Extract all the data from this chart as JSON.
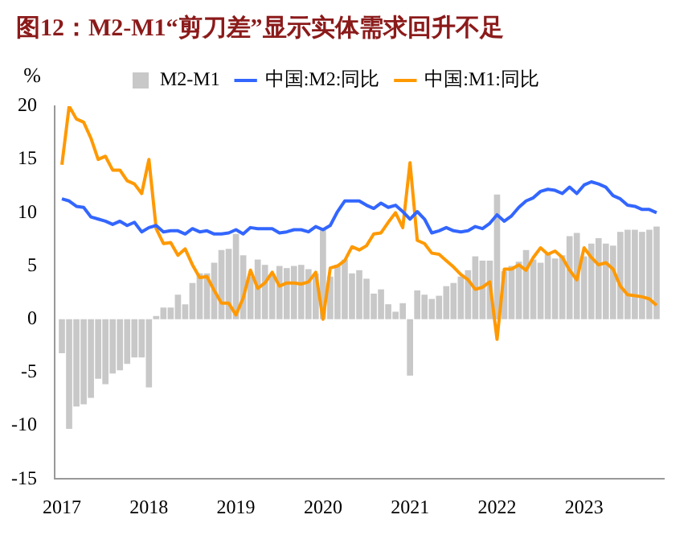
{
  "chart_data": {
    "type": "bar",
    "title": "图12：M2-M1“剪刀差”显示实体需求回升不足",
    "ylabel": "%",
    "x": [
      "2017-01",
      "2017-02",
      "2017-03",
      "2017-04",
      "2017-05",
      "2017-06",
      "2017-07",
      "2017-08",
      "2017-09",
      "2017-10",
      "2017-11",
      "2017-12",
      "2018-01",
      "2018-02",
      "2018-03",
      "2018-04",
      "2018-05",
      "2018-06",
      "2018-07",
      "2018-08",
      "2018-09",
      "2018-10",
      "2018-11",
      "2018-12",
      "2019-01",
      "2019-02",
      "2019-03",
      "2019-04",
      "2019-05",
      "2019-06",
      "2019-07",
      "2019-08",
      "2019-09",
      "2019-10",
      "2019-11",
      "2019-12",
      "2020-01",
      "2020-02",
      "2020-03",
      "2020-04",
      "2020-05",
      "2020-06",
      "2020-07",
      "2020-08",
      "2020-09",
      "2020-10",
      "2020-11",
      "2020-12",
      "2021-01",
      "2021-02",
      "2021-03",
      "2021-04",
      "2021-05",
      "2021-06",
      "2021-07",
      "2021-08",
      "2021-09",
      "2021-10",
      "2021-11",
      "2021-12",
      "2022-01",
      "2022-02",
      "2022-03",
      "2022-04",
      "2022-05",
      "2022-06",
      "2022-07",
      "2022-08",
      "2022-09",
      "2022-10",
      "2022-11",
      "2022-12",
      "2023-01",
      "2023-02",
      "2023-03",
      "2023-04",
      "2023-05",
      "2023-06",
      "2023-07",
      "2023-08",
      "2023-09",
      "2023-10",
      "2023-11"
    ],
    "series": [
      {
        "name": "M2-M1",
        "color": "#c8c8c8",
        "values": [
          -3.2,
          -10.3,
          -8.2,
          -8.0,
          -7.4,
          -5.6,
          -6.1,
          -5.1,
          -4.8,
          -4.2,
          -3.6,
          -3.6,
          -6.4,
          0.3,
          1.1,
          1.1,
          2.3,
          1.4,
          3.4,
          4.3,
          4.3,
          5.3,
          6.5,
          6.6,
          8.0,
          6.0,
          4.0,
          5.6,
          5.1,
          4.1,
          5.0,
          4.8,
          5.0,
          5.1,
          4.7,
          4.3,
          8.4,
          4.0,
          5.1,
          5.6,
          4.3,
          4.6,
          3.8,
          2.4,
          2.8,
          1.4,
          0.7,
          1.5,
          -5.3,
          2.7,
          2.3,
          1.9,
          2.2,
          3.1,
          3.4,
          4.0,
          4.6,
          5.9,
          5.5,
          5.5,
          11.7,
          4.5,
          5.0,
          5.4,
          6.5,
          5.6,
          5.3,
          6.1,
          5.7,
          6.0,
          7.8,
          8.1,
          5.9,
          7.1,
          7.6,
          7.1,
          6.9,
          8.2,
          8.4,
          8.4,
          8.2,
          8.4,
          8.7
        ]
      },
      {
        "name": "中国:M2:同比",
        "type": "line",
        "color": "#3366ff",
        "values": [
          11.3,
          11.1,
          10.6,
          10.5,
          9.6,
          9.4,
          9.2,
          8.9,
          9.2,
          8.8,
          9.1,
          8.2,
          8.6,
          8.8,
          8.2,
          8.3,
          8.3,
          8.0,
          8.5,
          8.2,
          8.3,
          8.0,
          8.0,
          8.1,
          8.4,
          8.0,
          8.6,
          8.5,
          8.5,
          8.5,
          8.1,
          8.2,
          8.4,
          8.4,
          8.2,
          8.7,
          8.4,
          8.8,
          10.1,
          11.1,
          11.1,
          11.1,
          10.7,
          10.4,
          10.9,
          10.5,
          10.7,
          10.1,
          9.4,
          10.1,
          9.4,
          8.1,
          8.3,
          8.6,
          8.3,
          8.2,
          8.3,
          8.7,
          8.5,
          9.0,
          9.8,
          9.2,
          9.7,
          10.5,
          11.1,
          11.4,
          12.0,
          12.2,
          12.1,
          11.8,
          12.4,
          11.8,
          12.6,
          12.9,
          12.7,
          12.4,
          11.6,
          11.3,
          10.7,
          10.6,
          10.3,
          10.3,
          10.0
        ]
      },
      {
        "name": "中国:M1:同比",
        "type": "line",
        "color": "#ff9900",
        "values": [
          14.5,
          20,
          18.8,
          18.5,
          17.0,
          15.0,
          15.3,
          14.0,
          14.0,
          13.0,
          12.7,
          11.8,
          15.0,
          8.5,
          7.1,
          7.2,
          6.0,
          6.6,
          5.1,
          3.9,
          4.0,
          2.7,
          1.5,
          1.5,
          0.4,
          2.0,
          4.6,
          2.9,
          3.4,
          4.4,
          3.1,
          3.4,
          3.4,
          3.3,
          3.5,
          4.4,
          0.0,
          4.8,
          5.0,
          5.5,
          6.8,
          6.5,
          6.9,
          8.0,
          8.1,
          9.1,
          10.0,
          8.6,
          14.7,
          7.4,
          7.1,
          6.2,
          6.1,
          5.5,
          4.9,
          4.2,
          3.7,
          2.8,
          3.0,
          3.5,
          -1.9,
          4.7,
          4.7,
          5.1,
          4.6,
          5.8,
          6.7,
          6.1,
          6.4,
          5.8,
          4.6,
          3.7,
          6.7,
          5.8,
          5.1,
          5.3,
          4.7,
          3.1,
          2.3,
          2.2,
          2.1,
          1.9,
          1.3
        ]
      }
    ],
    "xlim": [
      "2016-12",
      "2023-12"
    ],
    "xticks": [
      "2017",
      "2018",
      "2019",
      "2020",
      "2021",
      "2022",
      "2023"
    ],
    "ylim": [
      -15,
      20
    ],
    "yticks": [
      -15,
      -10,
      -5,
      0,
      5,
      10,
      15,
      20
    ],
    "grid": false,
    "legend": "top",
    "marker": "none",
    "line_style": "solid"
  }
}
